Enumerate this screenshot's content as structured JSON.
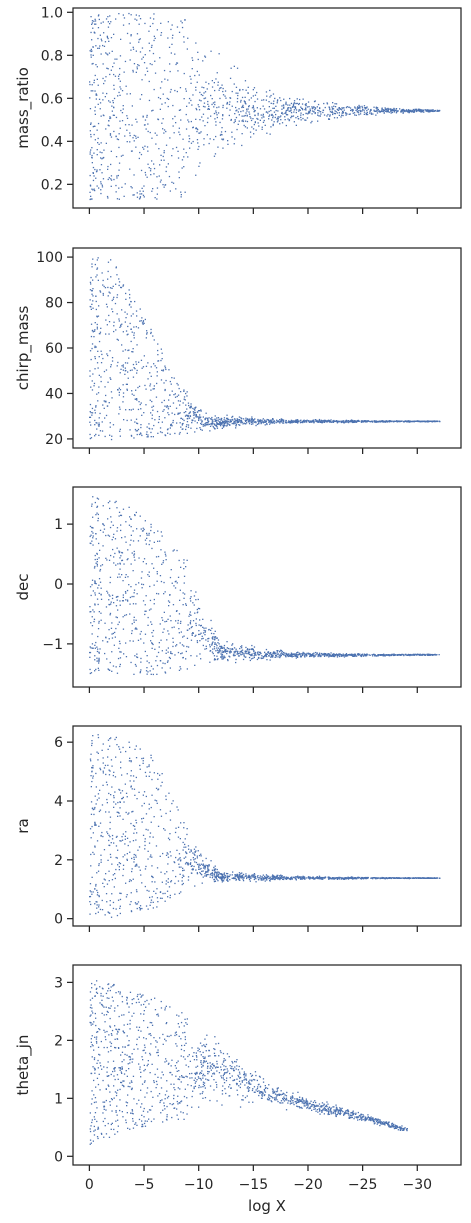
{
  "chart_data": [
    {
      "type": "scatter",
      "ylabel": "mass_ratio",
      "ylim": [
        0.09,
        1.02
      ],
      "yticks": [
        0.2,
        0.4,
        0.6,
        0.8,
        1.0
      ],
      "ytick_labels": [
        "0.2",
        "0.4",
        "0.6",
        "0.8",
        "1.0"
      ],
      "xlim": [
        1.5,
        -34
      ],
      "xticks": [
        0,
        -5,
        -10,
        -15,
        -20,
        -25,
        -30
      ],
      "xtick_labels": [],
      "xlabel": "",
      "color": "#4c72b0",
      "envelope": [
        {
          "x": 0,
          "ylo": 0.13,
          "yhi": 1.0
        },
        {
          "x": -5,
          "ylo": 0.13,
          "yhi": 1.0
        },
        {
          "x": -10,
          "ylo": 0.15,
          "yhi": 0.98
        },
        {
          "x": -13,
          "ylo": 0.32,
          "yhi": 0.8
        },
        {
          "x": -15,
          "ylo": 0.4,
          "yhi": 0.68
        },
        {
          "x": -20,
          "ylo": 0.47,
          "yhi": 0.62
        },
        {
          "x": -25,
          "ylo": 0.51,
          "yhi": 0.58
        },
        {
          "x": -28,
          "ylo": 0.53,
          "yhi": 0.56
        },
        {
          "x": -32,
          "ylo": 0.54,
          "yhi": 0.55
        }
      ]
    },
    {
      "type": "scatter",
      "ylabel": "chirp_mass",
      "ylim": [
        16,
        104
      ],
      "yticks": [
        20,
        40,
        60,
        80,
        100
      ],
      "ytick_labels": [
        "20",
        "40",
        "60",
        "80",
        "100"
      ],
      "xlim": [
        1.5,
        -34
      ],
      "xticks": [
        0,
        -5,
        -10,
        -15,
        -20,
        -25,
        -30
      ],
      "xtick_labels": [],
      "xlabel": "",
      "color": "#4c72b0",
      "envelope": [
        {
          "x": 0,
          "ylo": 20,
          "yhi": 100
        },
        {
          "x": -2,
          "ylo": 20,
          "yhi": 100
        },
        {
          "x": -5,
          "ylo": 21,
          "yhi": 75
        },
        {
          "x": -8,
          "ylo": 22,
          "yhi": 45
        },
        {
          "x": -11,
          "ylo": 23,
          "yhi": 32
        },
        {
          "x": -15,
          "ylo": 26,
          "yhi": 30
        },
        {
          "x": -20,
          "ylo": 27,
          "yhi": 29
        },
        {
          "x": -26,
          "ylo": 27.5,
          "yhi": 28.5
        },
        {
          "x": -32,
          "ylo": 27.8,
          "yhi": 28.2
        }
      ]
    },
    {
      "type": "scatter",
      "ylabel": "dec",
      "ylim": [
        -1.72,
        1.62
      ],
      "yticks": [
        1,
        0,
        -1
      ],
      "ytick_labels": [
        "1",
        "0",
        "−1"
      ],
      "xlim": [
        1.5,
        -34
      ],
      "xticks": [
        0,
        -5,
        -10,
        -15,
        -20,
        -25,
        -30
      ],
      "xtick_labels": [],
      "xlabel": "",
      "color": "#4c72b0",
      "envelope": [
        {
          "x": 0,
          "ylo": -1.5,
          "yhi": 1.5
        },
        {
          "x": -3,
          "ylo": -1.5,
          "yhi": 1.4
        },
        {
          "x": -6,
          "ylo": -1.5,
          "yhi": 1.0
        },
        {
          "x": -9,
          "ylo": -1.45,
          "yhi": 0.4
        },
        {
          "x": -12,
          "ylo": -1.35,
          "yhi": -0.9
        },
        {
          "x": -16,
          "ylo": -1.28,
          "yhi": -1.05
        },
        {
          "x": -20,
          "ylo": -1.23,
          "yhi": -1.12
        },
        {
          "x": -26,
          "ylo": -1.2,
          "yhi": -1.15
        },
        {
          "x": -32,
          "ylo": -1.18,
          "yhi": -1.16
        }
      ]
    },
    {
      "type": "scatter",
      "ylabel": "ra",
      "ylim": [
        -0.25,
        6.55
      ],
      "yticks": [
        0,
        2,
        4,
        6
      ],
      "ytick_labels": [
        "0",
        "2",
        "4",
        "6"
      ],
      "xlim": [
        1.5,
        -34
      ],
      "xticks": [
        0,
        -5,
        -10,
        -15,
        -20,
        -25,
        -30
      ],
      "xtick_labels": [],
      "xlabel": "",
      "color": "#4c72b0",
      "envelope": [
        {
          "x": 0,
          "ylo": 0.0,
          "yhi": 6.3
        },
        {
          "x": -3,
          "ylo": 0.1,
          "yhi": 6.2
        },
        {
          "x": -6,
          "ylo": 0.4,
          "yhi": 5.6
        },
        {
          "x": -9,
          "ylo": 1.0,
          "yhi": 3.0
        },
        {
          "x": -12,
          "ylo": 1.2,
          "yhi": 1.7
        },
        {
          "x": -16,
          "ylo": 1.28,
          "yhi": 1.55
        },
        {
          "x": -20,
          "ylo": 1.33,
          "yhi": 1.48
        },
        {
          "x": -26,
          "ylo": 1.37,
          "yhi": 1.43
        },
        {
          "x": -32,
          "ylo": 1.39,
          "yhi": 1.41
        }
      ]
    },
    {
      "type": "scatter",
      "ylabel": "theta_jn",
      "ylim": [
        -0.15,
        3.3
      ],
      "yticks": [
        0,
        1,
        2,
        3
      ],
      "ytick_labels": [
        "0",
        "1",
        "2",
        "3"
      ],
      "xlim": [
        1.5,
        -34
      ],
      "xticks": [
        0,
        -5,
        -10,
        -15,
        -20,
        -25,
        -30
      ],
      "xtick_labels": [
        "0",
        "−5",
        "−10",
        "−15",
        "−20",
        "−25",
        "−30"
      ],
      "xlabel": "log X",
      "color": "#4c72b0",
      "envelope": [
        {
          "x": 0,
          "ylo": 0.2,
          "yhi": 3.1
        },
        {
          "x": -4,
          "ylo": 0.5,
          "yhi": 2.9
        },
        {
          "x": -8,
          "ylo": 0.6,
          "yhi": 2.6
        },
        {
          "x": -12,
          "ylo": 0.8,
          "yhi": 2.2
        },
        {
          "x": -16,
          "ylo": 0.85,
          "yhi": 1.4
        },
        {
          "x": -20,
          "ylo": 0.75,
          "yhi": 1.05
        },
        {
          "x": -24,
          "ylo": 0.62,
          "yhi": 0.85
        },
        {
          "x": -27,
          "ylo": 0.5,
          "yhi": 0.65
        },
        {
          "x": -29,
          "ylo": 0.42,
          "yhi": 0.52
        }
      ]
    }
  ]
}
